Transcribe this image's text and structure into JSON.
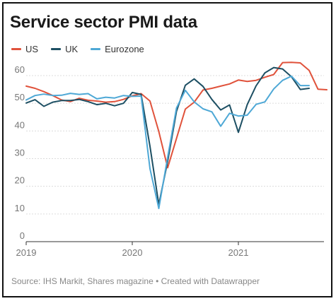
{
  "title": "Service sector PMI data",
  "source": "Source: IHS Markit, Shares magazine • Created with Datawrapper",
  "chart_data": {
    "type": "line",
    "x_start": "2019-01",
    "x_step": "month",
    "xticks": [
      "2019",
      "2020",
      "2021"
    ],
    "yticks": [
      "0",
      "10",
      "20",
      "30",
      "40",
      "50",
      "60"
    ],
    "ylim": [
      0,
      65
    ],
    "grid": "horizontal",
    "legend_position": "top-left",
    "series": [
      {
        "name": "US",
        "color": "#e0523b",
        "values": [
          56.2,
          55.4,
          54.2,
          52.8,
          51.2,
          50.6,
          51.8,
          51.1,
          50.8,
          50.4,
          50.6,
          51.4,
          52.7,
          53.5,
          50.8,
          39.8,
          26.7,
          37.3,
          47.9,
          50.4,
          54.8,
          55.4,
          56.2,
          57.0,
          58.4,
          57.9,
          58.3,
          59.4,
          60.4,
          64.7,
          64.8,
          64.6,
          61.9,
          55.1,
          54.9
        ]
      },
      {
        "name": "UK",
        "color": "#1d4f63",
        "values": [
          50.1,
          51.3,
          48.9,
          50.4,
          51.0,
          51.0,
          51.4,
          50.6,
          49.5,
          50.0,
          49.1,
          50.0,
          53.9,
          53.2,
          34.5,
          13.4,
          29.0,
          47.1,
          56.5,
          58.8,
          56.1,
          51.4,
          47.6,
          49.4,
          39.5,
          49.5,
          56.3,
          61.0,
          62.9,
          62.4,
          59.6,
          55.0,
          55.4
        ]
      },
      {
        "name": "Eurozone",
        "color": "#4ea8d6",
        "values": [
          51.2,
          52.8,
          53.3,
          52.8,
          52.9,
          53.6,
          53.2,
          53.5,
          51.6,
          52.2,
          51.9,
          52.8,
          52.5,
          52.6,
          26.4,
          12.0,
          30.5,
          48.3,
          54.7,
          50.5,
          48.0,
          46.9,
          41.7,
          46.4,
          45.4,
          45.7,
          49.6,
          50.5,
          55.2,
          58.3,
          59.8,
          56.4,
          56.4
        ]
      }
    ]
  }
}
